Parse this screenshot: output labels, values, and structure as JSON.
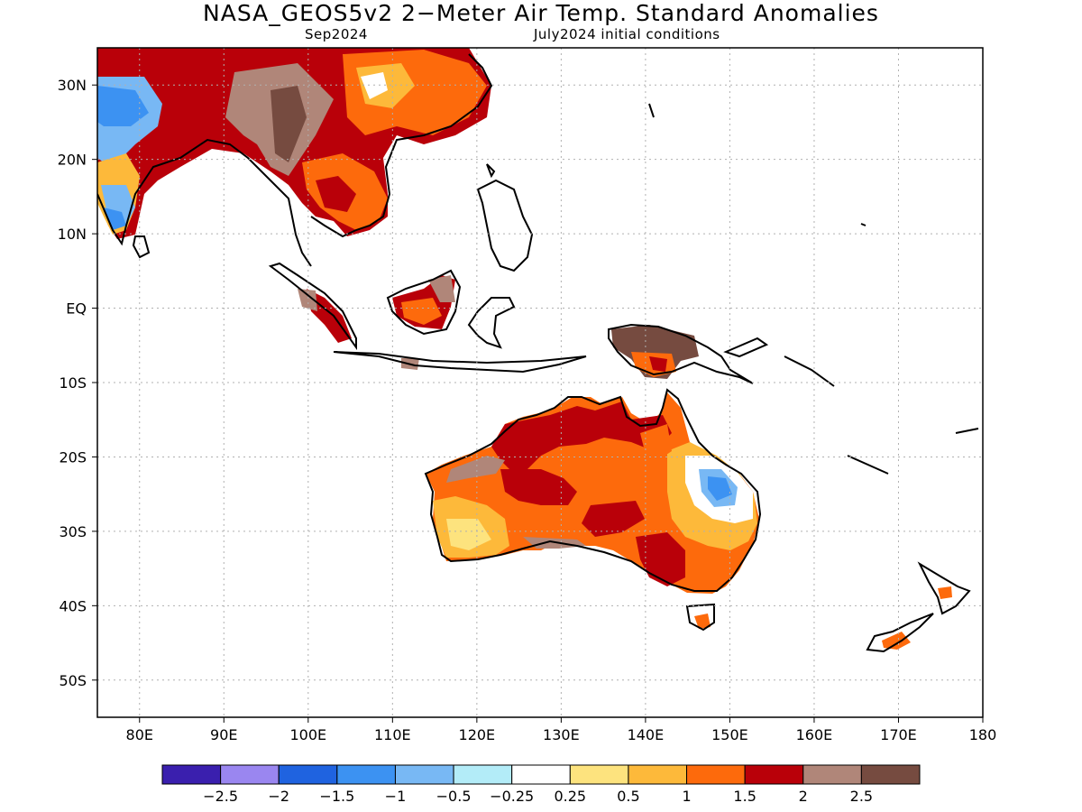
{
  "title": "NASA_GEOS5v2 2−Meter Air Temp. Standard Anomalies",
  "subtitle_left": "Sep2024",
  "subtitle_right": "July2024 initial conditions",
  "map": {
    "projection": "lat-lon",
    "lon_range": [
      75,
      180
    ],
    "lat_range": [
      -55,
      35
    ],
    "grid": "dotted",
    "lat_labels": [
      "30N",
      "20N",
      "10N",
      "EQ",
      "10S",
      "20S",
      "30S",
      "40S",
      "50S"
    ],
    "lat_values": [
      30,
      20,
      10,
      0,
      -10,
      -20,
      -30,
      -40,
      -50
    ],
    "lon_labels": [
      "80E",
      "90E",
      "100E",
      "110E",
      "120E",
      "130E",
      "140E",
      "150E",
      "160E",
      "170E",
      "180"
    ],
    "lon_values": [
      80,
      90,
      100,
      110,
      120,
      130,
      140,
      150,
      160,
      170,
      180
    ]
  },
  "colorbar": {
    "colors": [
      "#3a1fae",
      "#9a86f0",
      "#1f63e0",
      "#3c92f2",
      "#78b8f4",
      "#b3ecf8",
      "#ffffff",
      "#fde37e",
      "#fdb93a",
      "#fd6a0c",
      "#b90009",
      "#b08679",
      "#764b40"
    ],
    "labels": [
      "−2.5",
      "−2",
      "−1.5",
      "−1",
      "−0.5",
      "−0.25",
      "0.25",
      "0.5",
      "1",
      "1.5",
      "2",
      "2.5"
    ]
  }
}
